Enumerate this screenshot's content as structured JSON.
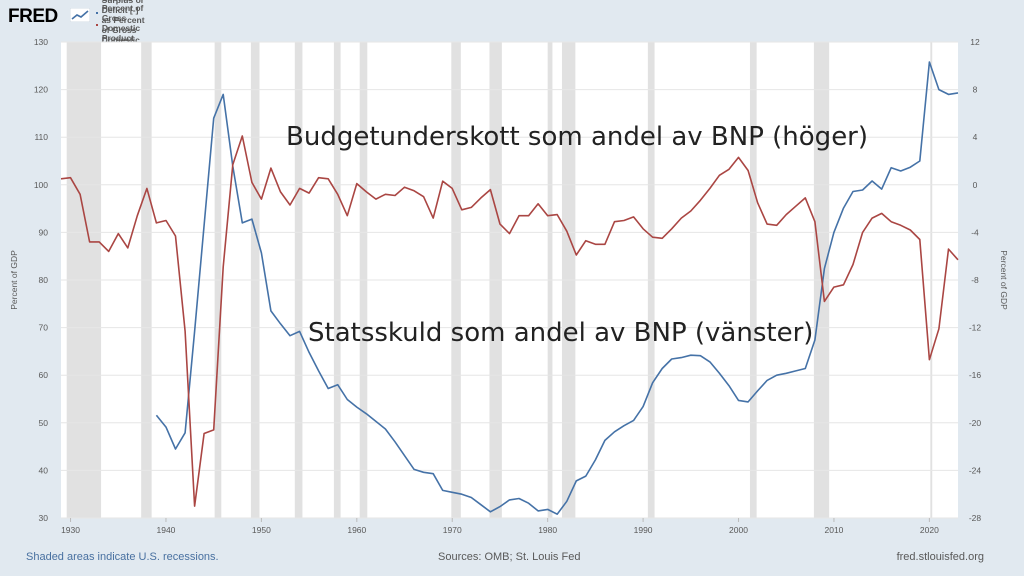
{
  "header": {
    "logo": "FRED",
    "series": [
      {
        "label": "Gross Federal Debt as Percent of Gross Domestic Product (left)",
        "color": "#4572a7"
      },
      {
        "label": "Federal Surplus or Deficit [-] as Percent of Gross Domestic Product (right)",
        "color": "#aa4643"
      }
    ]
  },
  "annotations": {
    "deficit": "Budgetunderskott som andel av BNP (höger)",
    "debt": "Statsskuld som andel av BNP (vänster)"
  },
  "footer": {
    "recessions_note": "Shaded areas indicate U.S. recessions.",
    "sources": "Sources: OMB; St. Louis Fed",
    "site": "fred.stlouisfed.org"
  },
  "chart_data": {
    "type": "line",
    "xlabel": "",
    "ylabel_left": "Percent of GDP",
    "ylabel_right": "Percent of GDP",
    "xlim": [
      1929,
      2023
    ],
    "ylim_left": [
      30,
      130
    ],
    "ylim_right": [
      -28,
      12
    ],
    "x_ticks": [
      1930,
      1940,
      1950,
      1960,
      1970,
      1980,
      1990,
      2000,
      2010,
      2020
    ],
    "y_ticks_left": [
      30,
      40,
      50,
      60,
      70,
      80,
      90,
      100,
      110,
      120,
      130
    ],
    "y_ticks_right": [
      -28,
      -24,
      -20,
      -16,
      -12,
      -8,
      -4,
      0,
      4,
      8,
      12
    ],
    "recessions": [
      [
        1929.6,
        1933.2
      ],
      [
        1937.4,
        1938.5
      ],
      [
        1945.1,
        1945.8
      ],
      [
        1948.9,
        1949.8
      ],
      [
        1953.5,
        1954.3
      ],
      [
        1957.6,
        1958.3
      ],
      [
        1960.3,
        1961.1
      ],
      [
        1969.9,
        1970.9
      ],
      [
        1973.9,
        1975.2
      ],
      [
        1980.0,
        1980.5
      ],
      [
        1981.5,
        1982.9
      ],
      [
        1990.5,
        1991.2
      ],
      [
        2001.2,
        2001.9
      ],
      [
        2007.9,
        2009.5
      ],
      [
        2020.1,
        2020.3
      ]
    ],
    "series": [
      {
        "name": "Gross Federal Debt as Percent of Gross Domestic Product (left)",
        "axis": "left",
        "color": "#4572a7",
        "x": [
          1939,
          1940,
          1941,
          1942,
          1943,
          1944,
          1945,
          1946,
          1947,
          1948,
          1949,
          1950,
          1951,
          1952,
          1953,
          1954,
          1955,
          1956,
          1957,
          1958,
          1959,
          1960,
          1961,
          1962,
          1963,
          1964,
          1965,
          1966,
          1967,
          1968,
          1969,
          1970,
          1971,
          1972,
          1973,
          1974,
          1975,
          1976,
          1977,
          1978,
          1979,
          1980,
          1981,
          1982,
          1983,
          1984,
          1985,
          1986,
          1987,
          1988,
          1989,
          1990,
          1991,
          1992,
          1993,
          1994,
          1995,
          1996,
          1997,
          1998,
          1999,
          2000,
          2001,
          2002,
          2003,
          2004,
          2005,
          2006,
          2007,
          2008,
          2009,
          2010,
          2011,
          2012,
          2013,
          2014,
          2015,
          2016,
          2017,
          2018,
          2019,
          2020,
          2021,
          2022,
          2023
        ],
        "values": [
          51.6,
          49.1,
          44.5,
          47.9,
          69.2,
          91.5,
          114.0,
          119.0,
          103.9,
          92.0,
          92.8,
          85.7,
          73.5,
          70.8,
          68.3,
          69.2,
          64.8,
          60.9,
          57.2,
          58.0,
          54.9,
          53.3,
          51.9,
          50.3,
          48.7,
          46.0,
          43.1,
          40.2,
          39.6,
          39.3,
          35.8,
          35.4,
          35.0,
          34.3,
          32.8,
          31.3,
          32.4,
          33.8,
          34.1,
          33.1,
          31.5,
          31.8,
          30.8,
          33.5,
          37.8,
          38.8,
          42.2,
          46.3,
          48.1,
          49.4,
          50.5,
          53.4,
          58.4,
          61.4,
          63.4,
          63.7,
          64.2,
          64.1,
          62.8,
          60.4,
          57.8,
          54.7,
          54.4,
          56.7,
          58.9,
          60.0,
          60.4,
          60.9,
          61.4,
          67.4,
          82.4,
          90.0,
          95.1,
          98.6,
          98.9,
          100.8,
          99.1,
          103.6,
          102.9,
          103.7,
          105.0,
          125.8,
          120.0,
          119.0,
          119.3
        ]
      },
      {
        "name": "Federal Surplus or Deficit [-] as Percent of Gross Domestic Product (right)",
        "axis": "right",
        "color": "#aa4643",
        "x": [
          1929,
          1930,
          1931,
          1932,
          1933,
          1934,
          1935,
          1936,
          1937,
          1938,
          1939,
          1940,
          1941,
          1942,
          1943,
          1944,
          1945,
          1946,
          1947,
          1948,
          1949,
          1950,
          1951,
          1952,
          1953,
          1954,
          1955,
          1956,
          1957,
          1958,
          1959,
          1960,
          1961,
          1962,
          1963,
          1964,
          1965,
          1966,
          1967,
          1968,
          1969,
          1970,
          1971,
          1972,
          1973,
          1974,
          1975,
          1976,
          1977,
          1978,
          1979,
          1980,
          1981,
          1982,
          1983,
          1984,
          1985,
          1986,
          1987,
          1988,
          1989,
          1990,
          1991,
          1992,
          1993,
          1994,
          1995,
          1996,
          1997,
          1998,
          1999,
          2000,
          2001,
          2002,
          2003,
          2004,
          2005,
          2006,
          2007,
          2008,
          2009,
          2010,
          2011,
          2012,
          2013,
          2014,
          2015,
          2016,
          2017,
          2018,
          2019,
          2020,
          2021,
          2022,
          2023
        ],
        "values": [
          0.5,
          0.6,
          -0.8,
          -4.8,
          -4.8,
          -5.6,
          -4.1,
          -5.3,
          -2.6,
          -0.3,
          -3.2,
          -3.0,
          -4.3,
          -12.3,
          -27.0,
          -20.9,
          -20.6,
          -6.9,
          1.7,
          4.1,
          0.2,
          -1.2,
          1.4,
          -0.6,
          -1.7,
          -0.3,
          -0.7,
          0.6,
          0.5,
          -0.8,
          -2.6,
          0.1,
          -0.6,
          -1.2,
          -0.8,
          -0.9,
          -0.2,
          -0.5,
          -1.0,
          -2.8,
          0.3,
          -0.3,
          -2.1,
          -1.9,
          -1.1,
          -0.4,
          -3.3,
          -4.1,
          -2.6,
          -2.6,
          -1.6,
          -2.6,
          -2.5,
          -3.9,
          -5.9,
          -4.7,
          -5.0,
          -5.0,
          -3.1,
          -3.0,
          -2.7,
          -3.7,
          -4.4,
          -4.5,
          -3.7,
          -2.8,
          -2.2,
          -1.3,
          -0.3,
          0.8,
          1.3,
          2.3,
          1.2,
          -1.5,
          -3.3,
          -3.4,
          -2.5,
          -1.8,
          -1.1,
          -3.1,
          -9.8,
          -8.6,
          -8.4,
          -6.7,
          -4.0,
          -2.8,
          -2.4,
          -3.1,
          -3.4,
          -3.8,
          -4.6,
          -14.7,
          -12.1,
          -5.4,
          -6.3
        ]
      }
    ]
  }
}
